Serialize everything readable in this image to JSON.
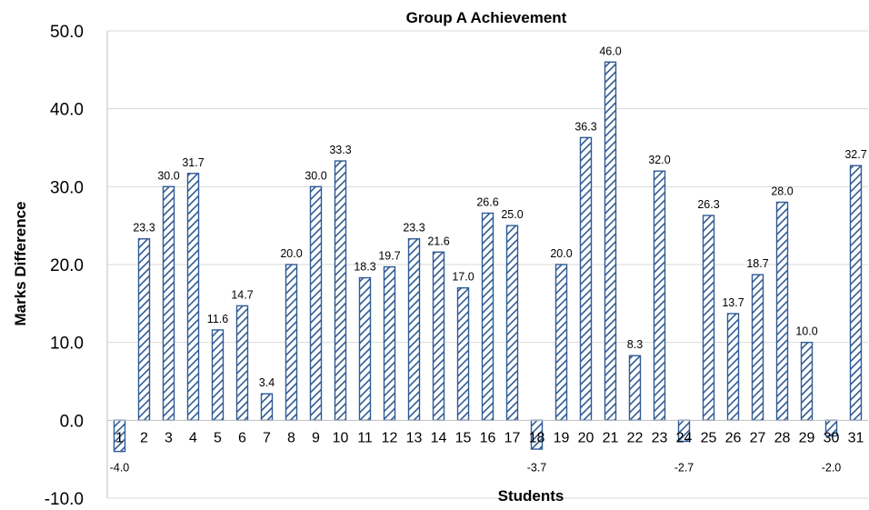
{
  "chart_data": {
    "type": "bar",
    "title": "Group A Achievement",
    "xlabel": "Students",
    "ylabel": "Marks Difference",
    "ylim": [
      -10,
      50
    ],
    "yticks": [
      "-10.0",
      "0.0",
      "10.0",
      "20.0",
      "30.0",
      "40.0",
      "50.0"
    ],
    "grid": true,
    "legend": "none",
    "bar_style": "diagonal-hatch",
    "colors": {
      "bar": "#2e5a94",
      "grid": "#d9d9d9",
      "axis": "#bfbfbf"
    },
    "categories": [
      "1",
      "2",
      "3",
      "4",
      "5",
      "6",
      "7",
      "8",
      "9",
      "10",
      "11",
      "12",
      "13",
      "14",
      "15",
      "16",
      "17",
      "18",
      "19",
      "20",
      "21",
      "22",
      "23",
      "24",
      "25",
      "26",
      "27",
      "28",
      "29",
      "30",
      "31"
    ],
    "values": [
      -4.0,
      23.3,
      30.0,
      31.7,
      11.6,
      14.7,
      3.4,
      20.0,
      30.0,
      33.3,
      18.3,
      19.7,
      23.3,
      21.6,
      17.0,
      26.6,
      25.0,
      -3.7,
      20.0,
      36.3,
      46.0,
      8.3,
      32.0,
      -2.7,
      26.3,
      13.7,
      18.7,
      28.0,
      10.0,
      -2.0,
      32.7
    ],
    "labels": [
      "-4.0",
      "23.3",
      "30.0",
      "31.7",
      "11.6",
      "14.7",
      "3.4",
      "20.0",
      "30.0",
      "33.3",
      "18.3",
      "19.7",
      "23.3",
      "21.6",
      "17.0",
      "26.6",
      "25.0",
      "-3.7",
      "20.0",
      "36.3",
      "46.0",
      "8.3",
      "32.0",
      "-2.7",
      "26.3",
      "13.7",
      "18.7",
      "28.0",
      "10.0",
      "-2.0",
      "32.7"
    ]
  }
}
